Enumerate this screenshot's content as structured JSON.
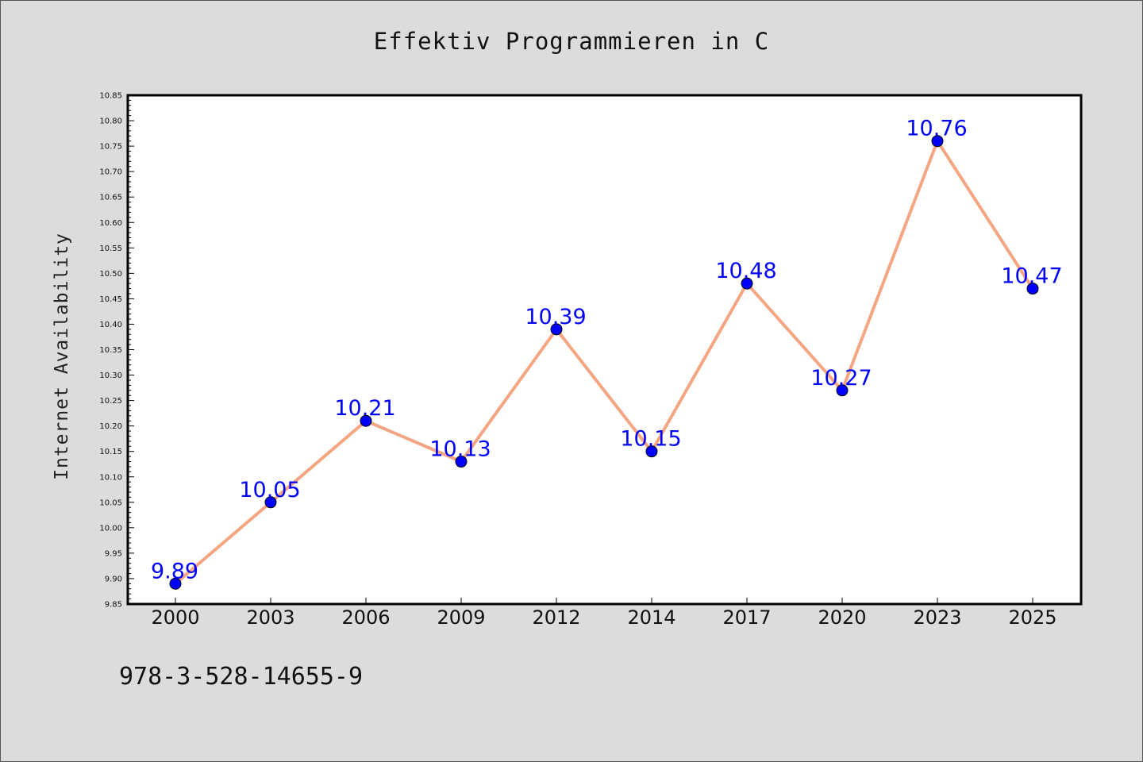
{
  "chart_data": {
    "type": "line",
    "title": "Effektiv Programmieren in C",
    "xlabel": "",
    "ylabel": "Internet Availability",
    "categories": [
      "2000",
      "2003",
      "2006",
      "2009",
      "2012",
      "2014",
      "2017",
      "2020",
      "2023",
      "2025"
    ],
    "series": [
      {
        "values": [
          9.89,
          10.05,
          10.21,
          10.13,
          10.39,
          10.15,
          10.48,
          10.27,
          10.76,
          10.47
        ],
        "labels": [
          "9.89",
          "10.05",
          "10.21",
          "10.13",
          "10.39",
          "10.15",
          "10.48",
          "10.27",
          "10.76",
          "10.47"
        ],
        "line_color": "#f4a582",
        "marker_color": "#0000ff"
      }
    ],
    "ylim": [
      9.85,
      10.85
    ],
    "yticks": [
      "9.85",
      "9.90",
      "9.95",
      "10.00",
      "10.05",
      "10.10",
      "10.15",
      "10.20",
      "10.25",
      "10.30",
      "10.35",
      "10.40",
      "10.45",
      "10.50",
      "10.55",
      "10.60",
      "10.65",
      "10.70",
      "10.75",
      "10.80",
      "10.85"
    ],
    "grid": false,
    "legend": "none",
    "label_color": "#0000ff"
  },
  "annotation": {
    "isbn": "978-3-528-14655-9"
  }
}
